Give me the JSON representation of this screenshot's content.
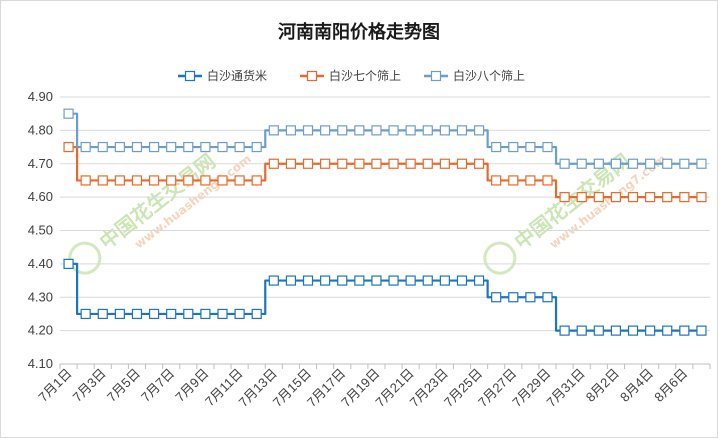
{
  "chart_data": {
    "type": "line",
    "title": "河南南阳价格走势图",
    "xlabel": "",
    "ylabel": "",
    "ylim": [
      4.1,
      4.9
    ],
    "yticks": [
      "4.10",
      "4.20",
      "4.30",
      "4.40",
      "4.50",
      "4.60",
      "4.70",
      "4.80",
      "4.90"
    ],
    "x": [
      "7月1日",
      "7月2日",
      "7月3日",
      "7月4日",
      "7月5日",
      "7月6日",
      "7月7日",
      "7月8日",
      "7月9日",
      "7月10日",
      "7月11日",
      "7月12日",
      "7月13日",
      "7月14日",
      "7月15日",
      "7月16日",
      "7月17日",
      "7月18日",
      "7月19日",
      "7月20日",
      "7月21日",
      "7月22日",
      "7月23日",
      "7月24日",
      "7月25日",
      "7月26日",
      "7月27日",
      "7月28日",
      "7月29日",
      "7月30日",
      "7月31日",
      "8月1日",
      "8月2日",
      "8月3日",
      "8月4日",
      "8月5日",
      "8月6日",
      "8月7日"
    ],
    "xtick_labels": [
      "7月1日",
      "7月3日",
      "7月5日",
      "7月7日",
      "7月9日",
      "7月11日",
      "7月13日",
      "7月15日",
      "7月17日",
      "7月19日",
      "7月21日",
      "7月23日",
      "7月25日",
      "7月27日",
      "7月29日",
      "7月31日",
      "8月2日",
      "8月4日",
      "8月6日"
    ],
    "grid": true,
    "legend_position": "top",
    "series": [
      {
        "name": "白沙通货米",
        "color": "#1f74bd",
        "values": [
          4.4,
          4.25,
          4.25,
          4.25,
          4.25,
          4.25,
          4.25,
          4.25,
          4.25,
          4.25,
          4.25,
          4.25,
          4.35,
          4.35,
          4.35,
          4.35,
          4.35,
          4.35,
          4.35,
          4.35,
          4.35,
          4.35,
          4.35,
          4.35,
          4.35,
          4.3,
          4.3,
          4.3,
          4.3,
          4.2,
          4.2,
          4.2,
          4.2,
          4.2,
          4.2,
          4.2,
          4.2,
          4.2
        ]
      },
      {
        "name": "白沙七个筛上",
        "color": "#e8692c",
        "values": [
          4.75,
          4.65,
          4.65,
          4.65,
          4.65,
          4.65,
          4.65,
          4.65,
          4.65,
          4.65,
          4.65,
          4.65,
          4.7,
          4.7,
          4.7,
          4.7,
          4.7,
          4.7,
          4.7,
          4.7,
          4.7,
          4.7,
          4.7,
          4.7,
          4.7,
          4.65,
          4.65,
          4.65,
          4.65,
          4.6,
          4.6,
          4.6,
          4.6,
          4.6,
          4.6,
          4.6,
          4.6,
          4.6
        ]
      },
      {
        "name": "白沙八个筛上",
        "color": "#6d9ec9",
        "values": [
          4.85,
          4.75,
          4.75,
          4.75,
          4.75,
          4.75,
          4.75,
          4.75,
          4.75,
          4.75,
          4.75,
          4.75,
          4.8,
          4.8,
          4.8,
          4.8,
          4.8,
          4.8,
          4.8,
          4.8,
          4.8,
          4.8,
          4.8,
          4.8,
          4.8,
          4.75,
          4.75,
          4.75,
          4.75,
          4.7,
          4.7,
          4.7,
          4.7,
          4.7,
          4.7,
          4.7,
          4.7,
          4.7
        ]
      }
    ]
  },
  "watermarks": [
    {
      "text": "中国花生交易网",
      "url": "www.huasheng7.com"
    },
    {
      "text": "中国花生交易网",
      "url": "www.huasheng7.com"
    }
  ]
}
